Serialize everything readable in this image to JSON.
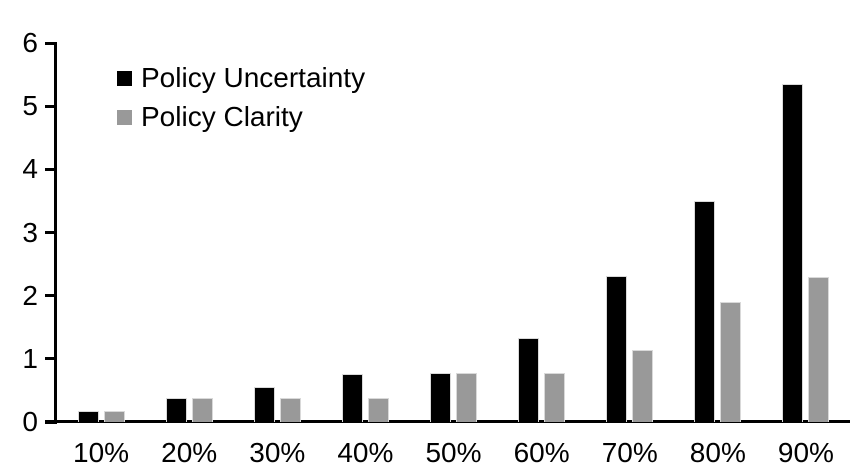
{
  "chart_data": {
    "type": "bar",
    "title": "",
    "xlabel": "",
    "ylabel": "",
    "categories": [
      "10%",
      "20%",
      "30%",
      "40%",
      "50%",
      "60%",
      "70%",
      "80%",
      "90%"
    ],
    "series": [
      {
        "name": "Policy Uncertainty",
        "color": "#000000",
        "values": [
          0.18,
          0.38,
          0.56,
          0.76,
          0.77,
          1.33,
          2.31,
          3.5,
          5.35
        ]
      },
      {
        "name": "Policy Clarity",
        "color": "#999999",
        "values": [
          0.18,
          0.38,
          0.38,
          0.38,
          0.78,
          0.77,
          1.14,
          1.9,
          2.3
        ]
      }
    ],
    "ylim": [
      0,
      6
    ],
    "yticks": [
      0,
      1,
      2,
      3,
      4,
      5,
      6
    ],
    "grid": false,
    "legend_position": "inside-top-left",
    "axis_color": "#000000",
    "background_color": "#ffffff"
  }
}
